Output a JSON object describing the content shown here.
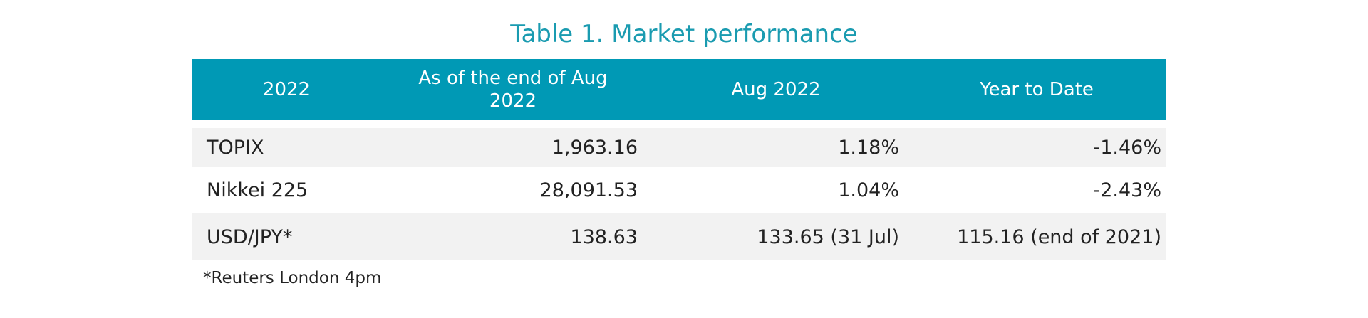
{
  "title": "Table 1. Market performance",
  "table": {
    "columns": [
      "2022",
      "As of the end of Aug 2022",
      "Aug 2022",
      "Year to Date"
    ],
    "rows": [
      [
        "TOPIX",
        "1,963.16",
        "1.18%",
        "-1.46%"
      ],
      [
        "Nikkei 225",
        "28,091.53",
        "1.04%",
        "-2.43%"
      ],
      [
        "USD/JPY*",
        "138.63",
        "133.65 (31 Jul)",
        "115.16 (end of 2021)"
      ]
    ]
  },
  "footnote": "*Reuters London 4pm"
}
